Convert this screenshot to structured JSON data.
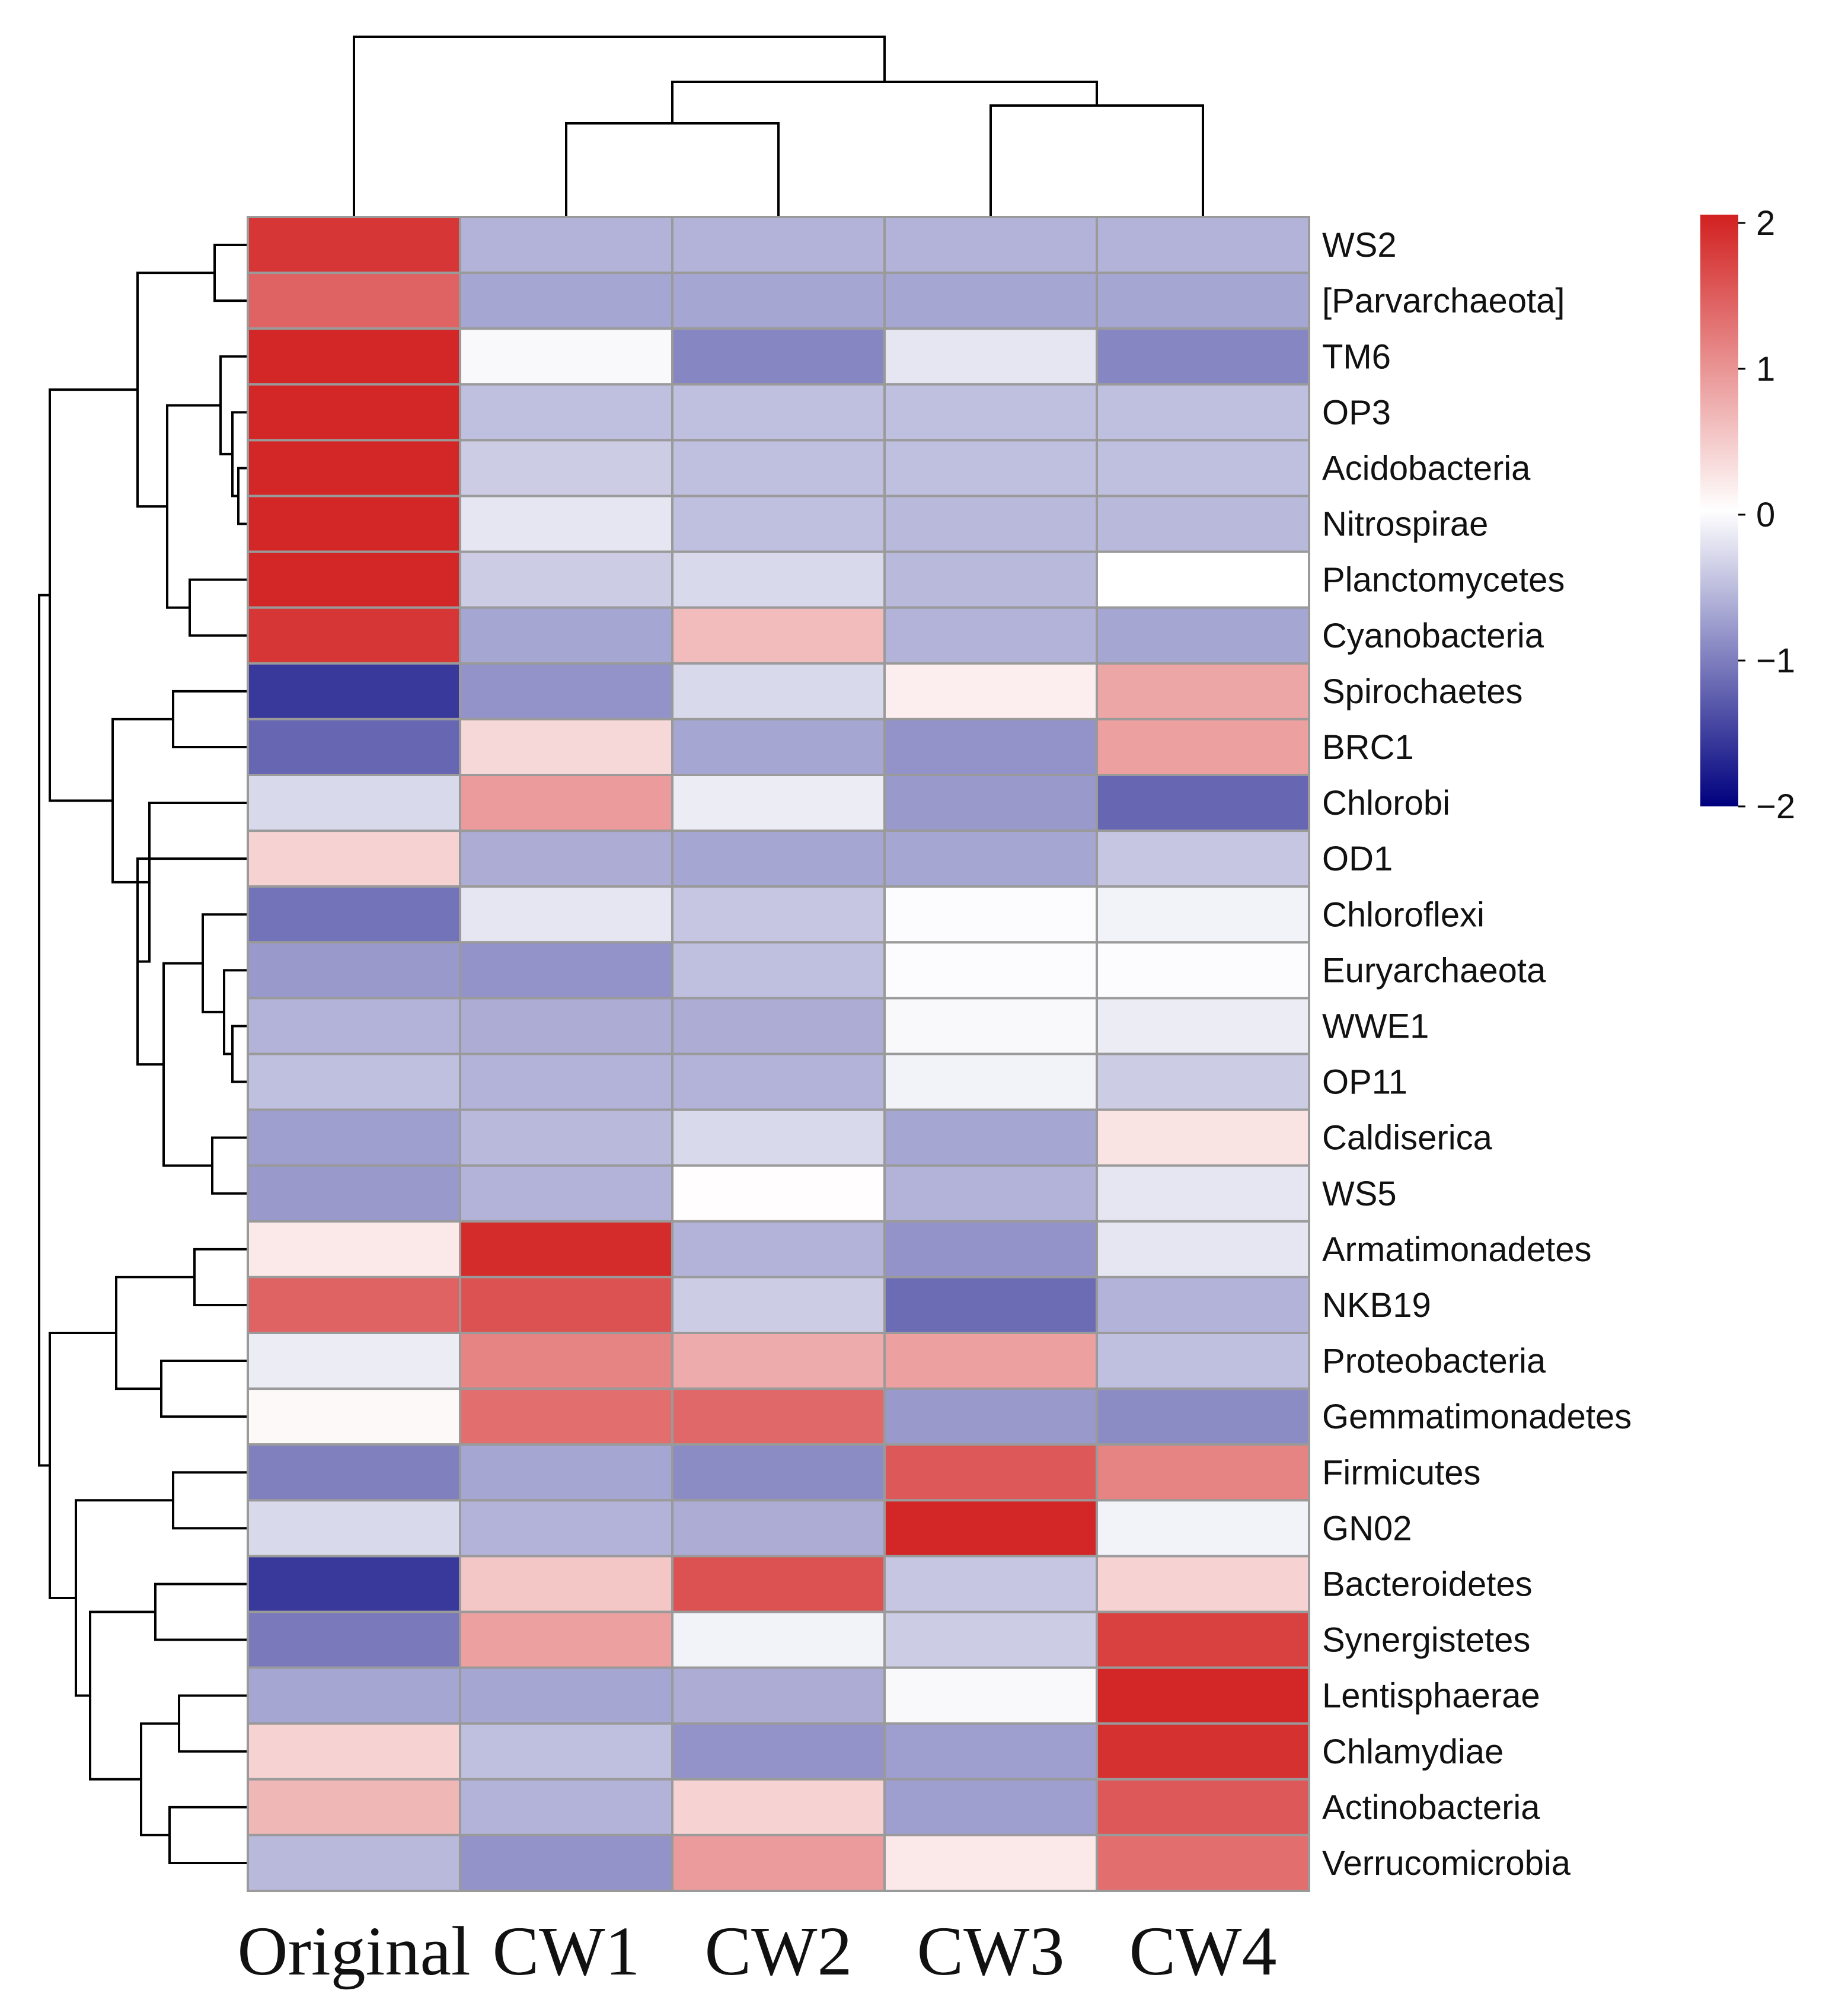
{
  "chart_data": {
    "type": "heatmap",
    "title": "",
    "columns": [
      "Original",
      "CW1",
      "CW2",
      "CW3",
      "CW4"
    ],
    "rows": [
      "WS2",
      "[Parvarchaeota]",
      "TM6",
      "OP3",
      "Acidobacteria",
      "Nitrospirae",
      "Planctomycetes",
      "Cyanobacteria",
      "Spirochaetes",
      "BRC1",
      "Chlorobi",
      "OD1",
      "Chloroflexi",
      "Euryarchaeota",
      "WWE1",
      "OP11",
      "Caldiserica",
      "WS5",
      "Armatimonadetes",
      "NKB19",
      "Proteobacteria",
      "Gemmatimonadetes",
      "Firmicutes",
      "GN02",
      "Bacteroidetes",
      "Synergistetes",
      "Lentisphaerae",
      "Chlamydiae",
      "Actinobacteria",
      "Verrucomicrobia"
    ],
    "values": [
      [
        1.8,
        -0.6,
        -0.6,
        -0.6,
        -0.6
      ],
      [
        1.4,
        -0.7,
        -0.7,
        -0.7,
        -0.7
      ],
      [
        1.95,
        -0.05,
        -0.95,
        -0.2,
        -0.95
      ],
      [
        1.95,
        -0.5,
        -0.5,
        -0.5,
        -0.5
      ],
      [
        1.95,
        -0.4,
        -0.5,
        -0.5,
        -0.5
      ],
      [
        1.95,
        -0.2,
        -0.5,
        -0.55,
        -0.55
      ],
      [
        1.95,
        -0.4,
        -0.3,
        -0.55,
        0.0
      ],
      [
        1.8,
        -0.7,
        0.6,
        -0.6,
        -0.7
      ],
      [
        -1.55,
        -0.85,
        -0.3,
        0.15,
        0.8
      ],
      [
        -1.2,
        0.35,
        -0.7,
        -0.85,
        0.85
      ],
      [
        -0.3,
        0.9,
        -0.15,
        -0.8,
        -1.2
      ],
      [
        0.4,
        -0.65,
        -0.7,
        -0.7,
        -0.45
      ],
      [
        -1.1,
        -0.2,
        -0.45,
        -0.02,
        -0.1
      ],
      [
        -0.8,
        -0.85,
        -0.5,
        -0.02,
        -0.02
      ],
      [
        -0.6,
        -0.65,
        -0.65,
        -0.05,
        -0.15
      ],
      [
        -0.5,
        -0.6,
        -0.6,
        -0.1,
        -0.4
      ],
      [
        -0.75,
        -0.55,
        -0.3,
        -0.7,
        0.25
      ],
      [
        -0.8,
        -0.6,
        0.02,
        -0.6,
        -0.2
      ],
      [
        0.2,
        1.9,
        -0.6,
        -0.85,
        -0.2
      ],
      [
        1.4,
        1.55,
        -0.4,
        -1.15,
        -0.6
      ],
      [
        -0.15,
        1.1,
        0.75,
        0.85,
        -0.5
      ],
      [
        0.05,
        1.3,
        1.35,
        -0.8,
        -0.9
      ],
      [
        -1.0,
        -0.7,
        -0.9,
        1.5,
        1.1
      ],
      [
        -0.3,
        -0.6,
        -0.65,
        1.95,
        -0.1
      ],
      [
        -1.55,
        0.5,
        1.55,
        -0.45,
        0.4
      ],
      [
        -1.05,
        0.85,
        -0.1,
        -0.4,
        1.7
      ],
      [
        -0.7,
        -0.7,
        -0.65,
        -0.05,
        1.95
      ],
      [
        0.4,
        -0.5,
        -0.85,
        -0.75,
        1.85
      ],
      [
        0.65,
        -0.6,
        0.4,
        -0.75,
        1.5
      ],
      [
        -0.55,
        -0.85,
        0.9,
        0.2,
        1.3
      ]
    ],
    "colorbar": {
      "min": -2,
      "max": 2,
      "ticks": [
        "2",
        "1",
        "0",
        "−1",
        "−2"
      ],
      "low_color": "#00007f",
      "mid_color": "#ffffff",
      "high_color": "#d22020"
    },
    "cell_border_color": "#9a9a9a",
    "row_dendrogram": true,
    "column_dendrogram": true
  }
}
